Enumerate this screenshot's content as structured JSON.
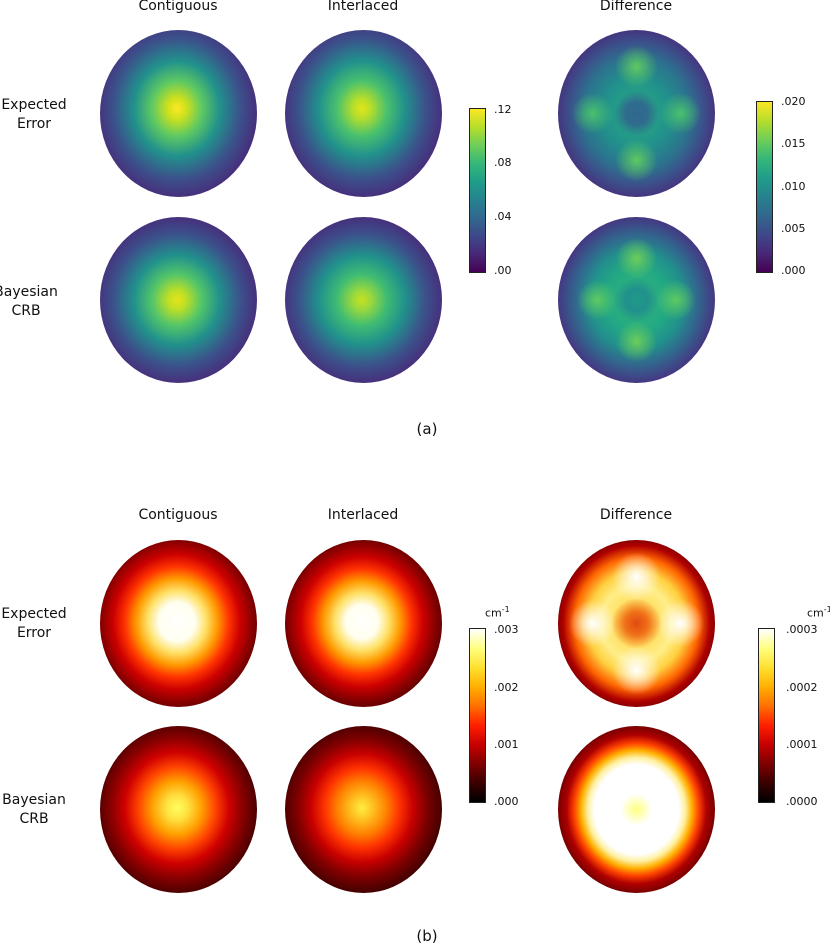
{
  "panels": [
    {
      "id": "a",
      "label": "(a)",
      "col_titles": [
        "Contiguous",
        "Interlaced",
        "Difference"
      ],
      "row_labels": [
        [
          "Expected",
          "Error"
        ],
        [
          "Bayesian",
          "CRB"
        ]
      ],
      "colormap": "viridis",
      "colorbars": [
        {
          "unit": "",
          "ticks": [
            ".12",
            ".08",
            ".04",
            ".00"
          ],
          "range": [
            0,
            0.12
          ]
        },
        {
          "unit": "",
          "ticks": [
            ".020",
            ".015",
            ".010",
            ".005",
            ".000"
          ],
          "range": [
            0,
            0.02
          ]
        }
      ]
    },
    {
      "id": "b",
      "label": "(b)",
      "col_titles": [
        "Contiguous",
        "Interlaced",
        "Difference"
      ],
      "row_labels": [
        [
          "Expected",
          "Error"
        ],
        [
          "Bayesian",
          "CRB"
        ]
      ],
      "colormap": "hot",
      "colorbars": [
        {
          "unit": "cm",
          "unit_sup": "-1",
          "ticks": [
            ".003",
            ".002",
            ".001",
            ".000"
          ],
          "range": [
            0,
            0.003
          ]
        },
        {
          "unit": "cm",
          "unit_sup": "-1",
          "ticks": [
            ".0003",
            ".0002",
            ".0001",
            ".0000"
          ],
          "range": [
            0,
            0.0003
          ]
        }
      ]
    }
  ],
  "chart_data": [
    {
      "type": "heatmap",
      "title": "",
      "panel": "(a)",
      "columns": [
        "Contiguous",
        "Interlaced",
        "Difference"
      ],
      "rows": [
        "Expected Error",
        "Bayesian CRB"
      ],
      "colorbar_ranges": [
        [
          0,
          0.12
        ],
        [
          0,
          0.02
        ]
      ],
      "approx_peak_values": {
        "Expected Error": {
          "Contiguous": 0.12,
          "Interlaced": 0.11,
          "Difference": 0.012
        },
        "Bayesian CRB": {
          "Contiguous": 0.115,
          "Interlaced": 0.105,
          "Difference": 0.012
        }
      }
    },
    {
      "type": "heatmap",
      "title": "",
      "panel": "(b)",
      "columns": [
        "Contiguous",
        "Interlaced",
        "Difference"
      ],
      "rows": [
        "Expected Error",
        "Bayesian CRB"
      ],
      "colorbar_ranges": [
        [
          0,
          0.003
        ],
        [
          0,
          0.0003
        ]
      ],
      "approx_peak_values": {
        "Expected Error": {
          "Contiguous": 0.003,
          "Interlaced": 0.003,
          "Difference": 0.0003
        },
        "Bayesian CRB": {
          "Contiguous": 0.0025,
          "Interlaced": 0.0023,
          "Difference": 0.0003
        }
      }
    }
  ]
}
